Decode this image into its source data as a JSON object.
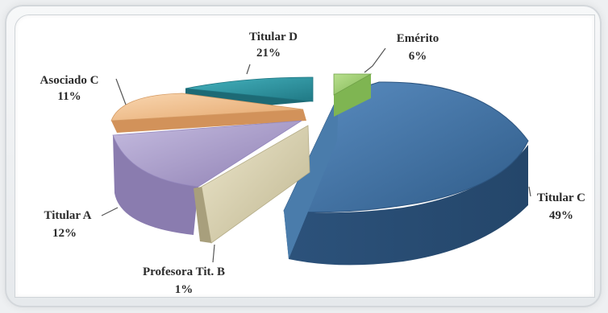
{
  "chart_data": {
    "type": "pie",
    "style": "3d-exploded",
    "slices": [
      {
        "label": "Titular C",
        "value_label": "49%",
        "value": 49,
        "color": "#3f6e9e"
      },
      {
        "label": "Profesora Tit. B",
        "value_label": "1%",
        "value": 1,
        "color": "#d6cfb0"
      },
      {
        "label": "Titular A",
        "value_label": "12%",
        "value": 12,
        "color": "#a99cc8"
      },
      {
        "label": "Asociado C",
        "value_label": "11%",
        "value": 11,
        "color": "#f2c08f"
      },
      {
        "label": "Titular D",
        "value_label": "21%",
        "value": 21,
        "color": "#2f96a4"
      },
      {
        "label": "Emérito",
        "value_label": "6%",
        "value": 6,
        "color": "#9ccc6e"
      }
    ]
  }
}
